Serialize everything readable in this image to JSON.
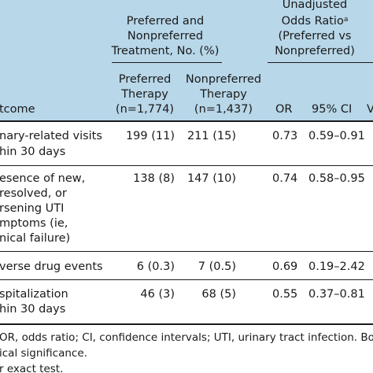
{
  "table": {
    "group_header": [
      "Preferred and",
      "Nonpreferred",
      "Treatment, No. (%)"
    ],
    "odds_header": [
      "Unadjusted",
      "Odds Ratio",
      "(Preferred vs",
      "Nonpreferred)"
    ],
    "odds_sup": "a",
    "col_preferred": [
      "Preferred",
      "Therapy",
      "(n=1,774)"
    ],
    "col_nonpreferred": [
      "Nonpreferred",
      "Therapy",
      "(n=1,437)"
    ],
    "col_outcome": "tcome",
    "col_or": "OR",
    "col_ci": "95% CI",
    "col_v": "V",
    "rows": [
      {
        "label": [
          "nary-related visits",
          "hin 30 days"
        ],
        "preferred": "199 (11)",
        "nonpreferred": "211 (15)",
        "or": "0.73",
        "ci": "0.59–0.91"
      },
      {
        "label": [
          "esence of new,",
          "resolved, or",
          "rsening UTI",
          "mptoms (ie,",
          "nical failure)"
        ],
        "preferred": "138 (8)",
        "nonpreferred": "147 (10)",
        "or": "0.74",
        "ci": "0.58–0.95"
      },
      {
        "label": [
          "verse drug events"
        ],
        "preferred": "6 (0.3)",
        "nonpreferred": "7 (0.5)",
        "or": "0.69",
        "ci": "0.19–2.42"
      },
      {
        "label": [
          "spitalization",
          "hin 30 days"
        ],
        "preferred": "46 (3)",
        "nonpreferred": "68 (5)",
        "or": "0.55",
        "ci": "0.37–0.81"
      }
    ],
    "footnotes": [
      "OR, odds ratio; CI, confidence intervals; UTI, urinary tract infection. Bold inc",
      "ical significance.",
      "r exact test."
    ]
  }
}
